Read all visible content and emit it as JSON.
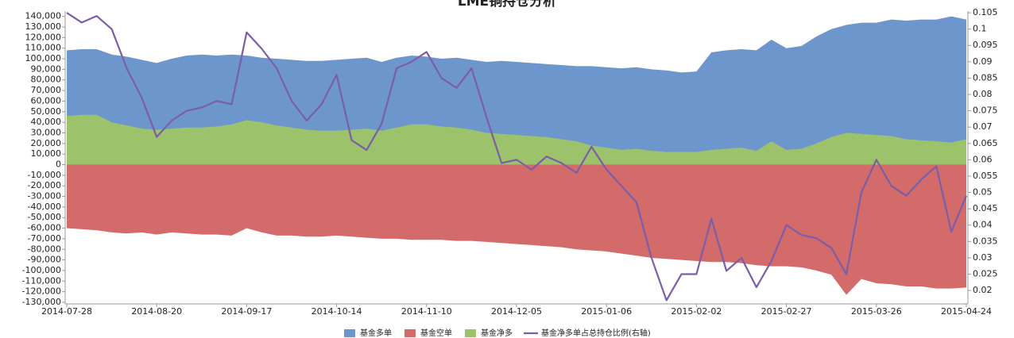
{
  "chart_data": {
    "type": "area",
    "title": "LME铜持仓分析",
    "categories": [
      "2014-07-28",
      null,
      null,
      null,
      null,
      null,
      "2014-08-20",
      null,
      null,
      null,
      null,
      null,
      "2014-09-17",
      null,
      null,
      null,
      null,
      null,
      "2014-10-14",
      null,
      null,
      null,
      null,
      null,
      "2014-11-10",
      null,
      null,
      null,
      null,
      null,
      "2014-12-05",
      null,
      null,
      null,
      null,
      null,
      "2015-01-06",
      null,
      null,
      null,
      null,
      null,
      "2015-02-02",
      null,
      null,
      null,
      null,
      null,
      "2015-02-27",
      null,
      null,
      null,
      null,
      null,
      "2015-03-26",
      null,
      null,
      null,
      null,
      null,
      "2015-04-24"
    ],
    "series": [
      {
        "name": "基金多单",
        "color": "#6d97cc",
        "values": [
          108000,
          109000,
          109000,
          104000,
          102000,
          99000,
          96000,
          100000,
          103000,
          104000,
          103000,
          104000,
          103000,
          101000,
          100000,
          99000,
          98000,
          98000,
          99000,
          100000,
          101000,
          97000,
          101000,
          103000,
          102000,
          100000,
          101000,
          99000,
          97000,
          98000,
          97000,
          96000,
          95000,
          94000,
          93000,
          93000,
          92000,
          91000,
          92000,
          90000,
          89000,
          87000,
          88000,
          106000,
          108000,
          109000,
          108000,
          118000,
          110000,
          112000,
          121000,
          128000,
          132000,
          134000,
          134000,
          137000,
          136000,
          137000,
          137000,
          140000,
          137000
        ]
      },
      {
        "name": "基金空单",
        "color": "#d46b6b",
        "values": [
          -60000,
          -61000,
          -62000,
          -64000,
          -65000,
          -64000,
          -66000,
          -64000,
          -65000,
          -66000,
          -66000,
          -67000,
          -60000,
          -64000,
          -67000,
          -67000,
          -68000,
          -68000,
          -67000,
          -68000,
          -69000,
          -70000,
          -70000,
          -71000,
          -71000,
          -71000,
          -72000,
          -72000,
          -73000,
          -74000,
          -75000,
          -76000,
          -77000,
          -78000,
          -80000,
          -81000,
          -82000,
          -84000,
          -86000,
          -88000,
          -89000,
          -90000,
          -91000,
          -92000,
          -92000,
          -93000,
          -95000,
          -96000,
          -96000,
          -97000,
          -100000,
          -104000,
          -123000,
          -108000,
          -112000,
          -113000,
          -115000,
          -115000,
          -117000,
          -117000,
          -116000
        ]
      },
      {
        "name": "基金净多",
        "color": "#9cc26c",
        "values": [
          46000,
          47000,
          47000,
          40000,
          37000,
          34000,
          33000,
          34000,
          35000,
          35000,
          36000,
          38000,
          42000,
          40000,
          37000,
          35000,
          33000,
          32000,
          32000,
          33000,
          34000,
          32000,
          35000,
          38000,
          38000,
          36000,
          35000,
          33000,
          30000,
          29000,
          28000,
          27000,
          26000,
          24000,
          22000,
          18000,
          16000,
          14000,
          15000,
          13000,
          12000,
          12000,
          12000,
          14000,
          15000,
          16000,
          13000,
          22000,
          14000,
          15000,
          20000,
          26000,
          30000,
          29000,
          28000,
          27000,
          24000,
          23000,
          22000,
          21000,
          24000
        ]
      },
      {
        "name": "基金净多单占总持仓比例(右轴)",
        "color": "#7b5ea8",
        "type": "line",
        "axis": "y2",
        "values": [
          0.105,
          0.102,
          0.104,
          0.1,
          0.088,
          0.079,
          0.067,
          0.072,
          0.075,
          0.076,
          0.078,
          0.077,
          0.099,
          0.094,
          0.088,
          0.078,
          0.072,
          0.077,
          0.086,
          0.066,
          0.063,
          0.071,
          0.088,
          0.09,
          0.093,
          0.085,
          0.082,
          0.088,
          0.073,
          0.059,
          0.06,
          0.057,
          0.061,
          0.059,
          0.056,
          0.064,
          0.057,
          0.052,
          0.047,
          0.03,
          0.017,
          0.025,
          0.025,
          0.042,
          0.026,
          0.03,
          0.021,
          0.029,
          0.04,
          0.037,
          0.036,
          0.033,
          0.025,
          0.05,
          0.06,
          0.052,
          0.049,
          0.054,
          0.058,
          0.038,
          0.049
        ]
      }
    ],
    "ylim": [
      -131500,
      145000
    ],
    "yticks": [
      {
        "value": 140000,
        "label": "140,000"
      },
      {
        "value": 130000,
        "label": "130,000"
      },
      {
        "value": 120000,
        "label": "120,000"
      },
      {
        "value": 110000,
        "label": "110,000"
      },
      {
        "value": 100000,
        "label": "100,000"
      },
      {
        "value": 90000,
        "label": "90,000"
      },
      {
        "value": 80000,
        "label": "80,000"
      },
      {
        "value": 70000,
        "label": "70,000"
      },
      {
        "value": 60000,
        "label": "60,000"
      },
      {
        "value": 50000,
        "label": "50,000"
      },
      {
        "value": 40000,
        "label": "40,000"
      },
      {
        "value": 30000,
        "label": "30,000"
      },
      {
        "value": 20000,
        "label": "20,000"
      },
      {
        "value": 10000,
        "label": "10,000"
      },
      0,
      {
        "value": -10000,
        "label": "-10,000"
      },
      {
        "value": -20000,
        "label": "-20,000"
      },
      {
        "value": -30000,
        "label": "-30,000"
      },
      {
        "value": -40000,
        "label": "-40,000"
      },
      {
        "value": -50000,
        "label": "-50,000"
      },
      {
        "value": -60000,
        "label": "-60,000"
      },
      {
        "value": -70000,
        "label": "-70,000"
      },
      {
        "value": -80000,
        "label": "-80,000"
      },
      {
        "value": -90000,
        "label": "-90,000"
      },
      {
        "value": -100000,
        "label": "-100,000"
      },
      {
        "value": -110000,
        "label": "-110,000"
      },
      {
        "value": -120000,
        "label": "-120,000"
      },
      {
        "value": -130000,
        "label": "-130,000"
      }
    ],
    "y2lim": [
      0.0159,
      0.1055
    ],
    "y2ticks": [
      0.02,
      0.025,
      0.03,
      0.035,
      0.04,
      0.045,
      0.05,
      0.055,
      0.06,
      0.065,
      0.07,
      0.075,
      0.08,
      0.085,
      0.09,
      0.095,
      0.1,
      0.105
    ],
    "legend": "bottom"
  }
}
